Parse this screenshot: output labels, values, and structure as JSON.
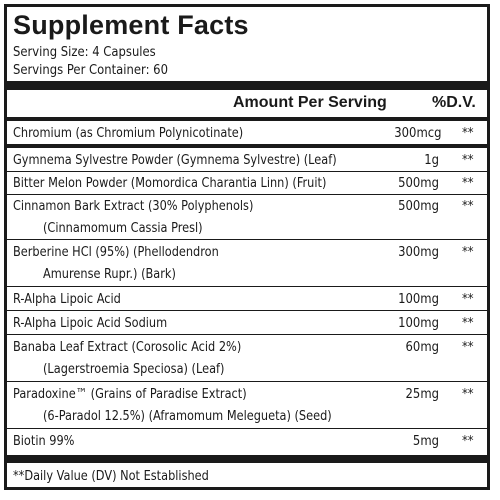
{
  "title": "Supplement Facts",
  "serving_size": "Serving Size: 4 Capsules",
  "servings_per_container": "Servings Per Container: 60",
  "header": {
    "amount": "Amount Per Serving",
    "dv": "%D.V."
  },
  "rows": [
    {
      "name": "Chromium (as Chromium Polynicotinate)",
      "amount": "300mcg",
      "dv": "**"
    },
    {
      "name": "Gymnema Sylvestre Powder (Gymnema Sylvestre) (Leaf)",
      "amount": "1g",
      "dv": "**"
    },
    {
      "name": "Bitter Melon Powder (Momordica Charantia Linn) (Fruit)",
      "amount": "500mg",
      "dv": "**"
    },
    {
      "name": "Cinnamon Bark Extract (30% Polyphenols)",
      "name2": "(Cinnamomum Cassia Presl)",
      "amount": "500mg",
      "dv": "**"
    },
    {
      "name": "Berberine HCl (95%) (Phellodendron",
      "name2": "Amurense Rupr.) (Bark)",
      "amount": "300mg",
      "dv": "**"
    },
    {
      "name": "R-Alpha Lipoic Acid",
      "amount": "100mg",
      "dv": "**"
    },
    {
      "name": "R-Alpha Lipoic Acid Sodium",
      "amount": "100mg",
      "dv": "**"
    },
    {
      "name": "Banaba Leaf Extract (Corosolic Acid 2%)",
      "name2": "(Lagerstroemia Speciosa) (Leaf)",
      "amount": "60mg",
      "dv": "**"
    },
    {
      "name": "Paradoxine™ (Grains of Paradise Extract)",
      "name2": "(6-Paradol 12.5%) (Aframomum Melegueta) (Seed)",
      "amount": "25mg",
      "dv": "**"
    },
    {
      "name": "Biotin 99%",
      "amount": "5mg",
      "dv": "**"
    }
  ],
  "footnote": "**Daily Value (DV) Not Established"
}
